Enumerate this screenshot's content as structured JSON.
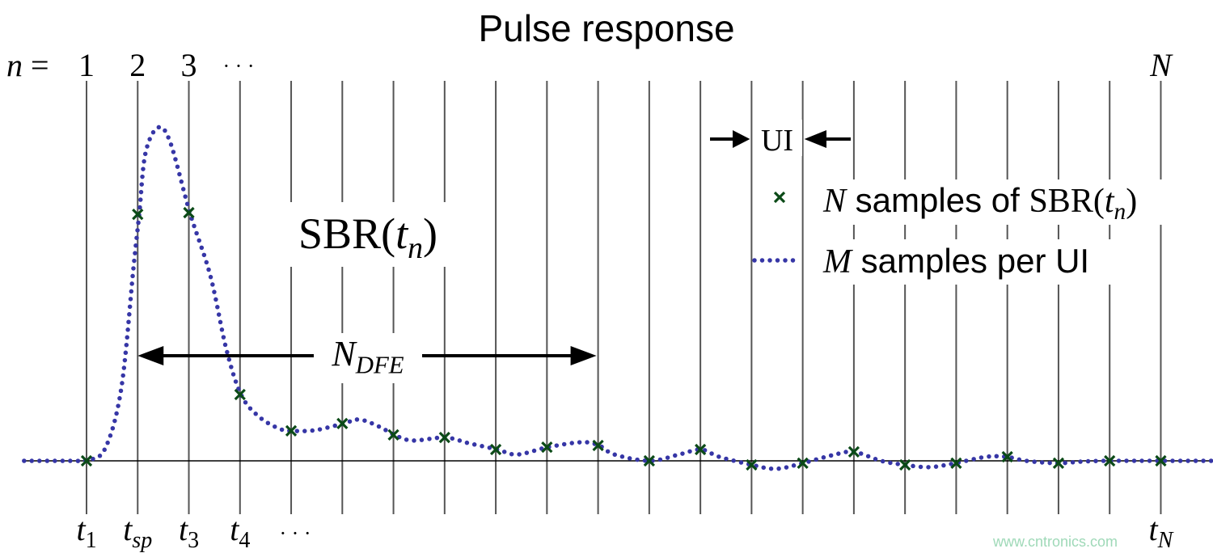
{
  "title": "Pulse response",
  "index_label": {
    "var": "n",
    "eq": " =",
    "ticks": [
      "1",
      "2",
      "3"
    ],
    "ellipsis": "· · ·",
    "last": "N"
  },
  "time_labels": [
    {
      "base": "t",
      "sub": "1"
    },
    {
      "base": "t",
      "sub": "sp"
    },
    {
      "base": "t",
      "sub": "3"
    },
    {
      "base": "t",
      "sub": "4"
    }
  ],
  "time_ellipsis": "· · ·",
  "time_last": {
    "base": "t",
    "sub": "N"
  },
  "curve_label": {
    "pre": "SBR(",
    "var": "t",
    "sub": "n",
    "post": ")"
  },
  "dfe_label": {
    "base": "N",
    "sub": "DFE"
  },
  "ui_label": "UI",
  "legend": [
    {
      "var": "N",
      "text": " samples of ",
      "func": "SBR(",
      "fvar": "t",
      "sub": "n",
      "post": ")",
      "marker": "x-marker"
    },
    {
      "var": "M",
      "text": " samples per UI",
      "marker": "dotted-line"
    }
  ],
  "watermark": "www.cntronics.com",
  "colors": {
    "curve": "#3636a6",
    "samples": "#0b4a17",
    "grid": "#555555",
    "axis": "#000000"
  },
  "chart_data": {
    "type": "line",
    "x_unit": "UI index n",
    "n_range": [
      1,
      22
    ],
    "samples": [
      0,
      0.74,
      0.745,
      0.199,
      0.09,
      0.112,
      0.078,
      0.07,
      0.034,
      0.041,
      0.046,
      0,
      0.034,
      -0.012,
      -0.007,
      0.027,
      -0.012,
      -0.007,
      0.012,
      -0.007,
      0,
      0
    ],
    "curve": [
      [
        -0.22,
        0
      ],
      [
        0.73,
        0
      ],
      [
        1,
        0.002
      ],
      [
        1.36,
        0.036
      ],
      [
        1.68,
        0.218
      ],
      [
        1.92,
        0.583
      ],
      [
        2.03,
        0.74
      ],
      [
        2.15,
        0.922
      ],
      [
        2.39,
        1.0
      ],
      [
        2.63,
        0.959
      ],
      [
        3.02,
        0.745
      ],
      [
        3.42,
        0.556
      ],
      [
        3.73,
        0.337
      ],
      [
        4.02,
        0.199
      ],
      [
        4.36,
        0.134
      ],
      [
        4.76,
        0.097
      ],
      [
        5.03,
        0.09
      ],
      [
        5.47,
        0.092
      ],
      [
        6.02,
        0.112
      ],
      [
        6.34,
        0.124
      ],
      [
        6.73,
        0.102
      ],
      [
        7.02,
        0.078
      ],
      [
        7.37,
        0.061
      ],
      [
        8.01,
        0.07
      ],
      [
        8.47,
        0.053
      ],
      [
        9.03,
        0.034
      ],
      [
        9.42,
        0.019
      ],
      [
        10.02,
        0.041
      ],
      [
        10.68,
        0.056
      ],
      [
        11.02,
        0.046
      ],
      [
        11.32,
        0.019
      ],
      [
        12.01,
        0
      ],
      [
        12.58,
        0.019
      ],
      [
        13.01,
        0.034
      ],
      [
        13.37,
        0.012
      ],
      [
        14.0,
        -0.012
      ],
      [
        14.48,
        -0.024
      ],
      [
        15.0,
        -0.007
      ],
      [
        15.58,
        0.017
      ],
      [
        16.0,
        0.027
      ],
      [
        16.53,
        0
      ],
      [
        16.99,
        -0.012
      ],
      [
        17.48,
        -0.019
      ],
      [
        17.98,
        -0.007
      ],
      [
        18.58,
        0.012
      ],
      [
        18.98,
        0.012
      ],
      [
        19.37,
        0
      ],
      [
        19.97,
        -0.007
      ],
      [
        20.48,
        -0.002
      ],
      [
        20.97,
        0
      ],
      [
        22.01,
        0
      ],
      [
        23.0,
        0
      ]
    ],
    "dfe_span_n": [
      2,
      11
    ],
    "grid": true
  }
}
